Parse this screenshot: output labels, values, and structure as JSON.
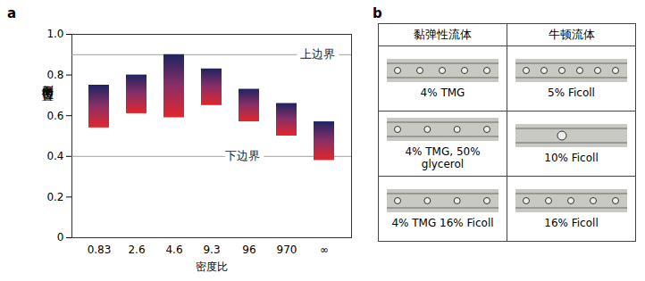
{
  "chart_data": {
    "panel": "a",
    "type": "range_bar",
    "xlabel": "密度比",
    "ylabel": "侧向平衡位置",
    "categories": [
      "0.83",
      "2.6",
      "4.6",
      "9.3",
      "96",
      "970",
      "∞"
    ],
    "low": [
      0.54,
      0.61,
      0.59,
      0.65,
      0.57,
      0.5,
      0.38
    ],
    "high": [
      0.75,
      0.8,
      0.9,
      0.83,
      0.73,
      0.66,
      0.57
    ],
    "color": "#e3262b",
    "ylim": [
      0,
      1
    ],
    "yticks": [
      0,
      0.2,
      0.4,
      0.6,
      0.8,
      {
        "value": 1,
        "label": "1.0"
      }
    ],
    "annotations": [
      {
        "text": "上边界",
        "y": 0.9
      },
      {
        "text": "下边界",
        "y": 0.4
      }
    ]
  },
  "table": {
    "panel": "b",
    "header": [
      "黏弹性流体",
      "牛顿流体"
    ],
    "rows": [
      [
        "4% TMG",
        "5% Ficoll"
      ],
      [
        "4% TMG, 50% glycerol",
        "10% Ficoll"
      ],
      [
        "4% TMG 16% Ficoll",
        "16% Ficoll"
      ]
    ]
  }
}
